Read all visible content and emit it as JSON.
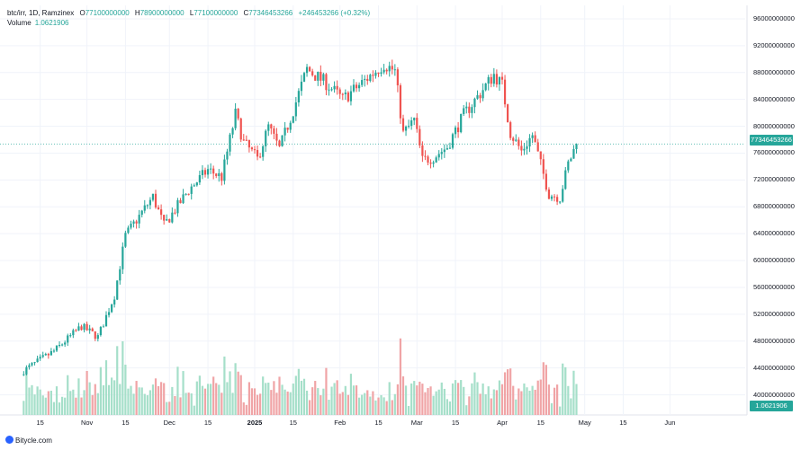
{
  "header": {
    "symbol": "btc/irr, 1D, Ramzinex",
    "open_label": "O",
    "open": "77100000000",
    "high_label": "H",
    "high": "78900000000",
    "low_label": "L",
    "low": "77100000000",
    "close_label": "C",
    "close": "77346453266",
    "change": "+246453266 (+0.32%)",
    "volume_label": "Volume",
    "volume": "1.0621906"
  },
  "badges": {
    "last_price": "77346453266",
    "last_volume": "1.0621906"
  },
  "footer": {
    "brand": "Bitycle.com"
  },
  "colors": {
    "up": "#26a69a",
    "down": "#ef5350",
    "up_volume": "#a5dfc9",
    "down_volume": "#f0a4a6",
    "grid": "#f0f3fa"
  },
  "chart_data": {
    "type": "candlestick",
    "symbol": "btc/irr",
    "interval": "1D",
    "exchange": "Ramzinex",
    "y_ticks": [
      "96000000000",
      "92000000000",
      "88000000000",
      "84000000000",
      "80000000000",
      "76000000000",
      "72000000000",
      "68000000000",
      "64000000000",
      "60000000000",
      "56000000000",
      "52000000000",
      "48000000000",
      "44000000000",
      "40000000000"
    ],
    "x_ticks": [
      "15",
      "Nov",
      "15",
      "Dec",
      "15",
      "2025",
      "15",
      "Feb",
      "15",
      "Mar",
      "15",
      "Apr",
      "15",
      "May",
      "15",
      "Jun"
    ],
    "ylim": [
      37000000000,
      98000000000
    ],
    "grid": true,
    "last_price": 77346453266,
    "close_series": [
      {
        "date": "2024-10-09",
        "close": 43600000000
      },
      {
        "date": "2024-10-20",
        "close": 46500000000
      },
      {
        "date": "2024-10-30",
        "close": 50200000000
      },
      {
        "date": "2024-11-05",
        "close": 48600000000
      },
      {
        "date": "2024-11-11",
        "close": 54800000000
      },
      {
        "date": "2024-11-15",
        "close": 63700000000
      },
      {
        "date": "2024-11-25",
        "close": 69500000000
      },
      {
        "date": "2024-11-29",
        "close": 65200000000
      },
      {
        "date": "2024-12-08",
        "close": 70500000000
      },
      {
        "date": "2024-12-15",
        "close": 73500000000
      },
      {
        "date": "2024-12-20",
        "close": 72400000000
      },
      {
        "date": "2024-12-25",
        "close": 81800000000
      },
      {
        "date": "2024-12-28",
        "close": 77600000000
      },
      {
        "date": "2025-01-02",
        "close": 75100000000
      },
      {
        "date": "2025-01-06",
        "close": 79900000000
      },
      {
        "date": "2025-01-10",
        "close": 76600000000
      },
      {
        "date": "2025-01-15",
        "close": 82400000000
      },
      {
        "date": "2025-01-20",
        "close": 88500000000
      },
      {
        "date": "2025-01-27",
        "close": 86400000000
      },
      {
        "date": "2025-02-02",
        "close": 84000000000
      },
      {
        "date": "2025-02-10",
        "close": 86800000000
      },
      {
        "date": "2025-02-17",
        "close": 89300000000
      },
      {
        "date": "2025-02-21",
        "close": 88200000000
      },
      {
        "date": "2025-02-24",
        "close": 78900000000
      },
      {
        "date": "2025-02-28",
        "close": 80900000000
      },
      {
        "date": "2025-03-03",
        "close": 74900000000
      },
      {
        "date": "2025-03-07",
        "close": 75400000000
      },
      {
        "date": "2025-03-12",
        "close": 76900000000
      },
      {
        "date": "2025-03-18",
        "close": 81700000000
      },
      {
        "date": "2025-03-24",
        "close": 84900000000
      },
      {
        "date": "2025-03-29",
        "close": 87700000000
      },
      {
        "date": "2025-04-01",
        "close": 86100000000
      },
      {
        "date": "2025-04-04",
        "close": 79000000000
      },
      {
        "date": "2025-04-08",
        "close": 76300000000
      },
      {
        "date": "2025-04-12",
        "close": 78700000000
      },
      {
        "date": "2025-04-18",
        "close": 69900000000
      },
      {
        "date": "2025-04-22",
        "close": 69400000000
      },
      {
        "date": "2025-04-25",
        "close": 74400000000
      },
      {
        "date": "2025-04-28",
        "close": 77346453266
      }
    ]
  }
}
